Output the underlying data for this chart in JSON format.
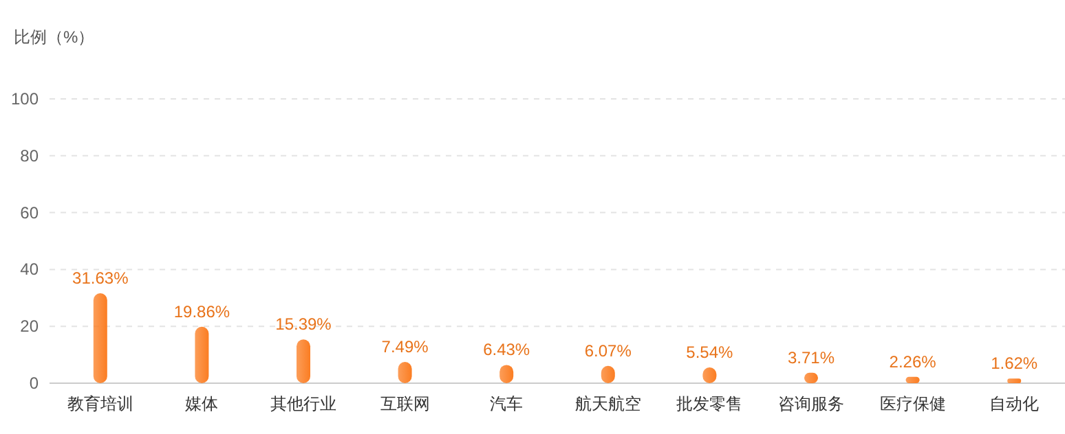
{
  "chart_data": {
    "type": "bar",
    "ylabel": "比例（%）",
    "categories": [
      "教育培训",
      "媒体",
      "其他行业",
      "互联网",
      "汽车",
      "航天航空",
      "批发零售",
      "咨询服务",
      "医疗保健",
      "自动化"
    ],
    "values": [
      31.63,
      19.86,
      15.39,
      7.49,
      6.43,
      6.07,
      5.54,
      3.71,
      2.26,
      1.62
    ],
    "value_labels": [
      "31.63%",
      "19.86%",
      "15.39%",
      "7.49%",
      "6.43%",
      "6.07%",
      "5.54%",
      "3.71%",
      "2.26%",
      "1.62%"
    ],
    "color": "#fb7d22",
    "ylim": [
      0,
      100
    ],
    "yticks": [
      0,
      20,
      40,
      60,
      80,
      100
    ],
    "grid": "y"
  }
}
